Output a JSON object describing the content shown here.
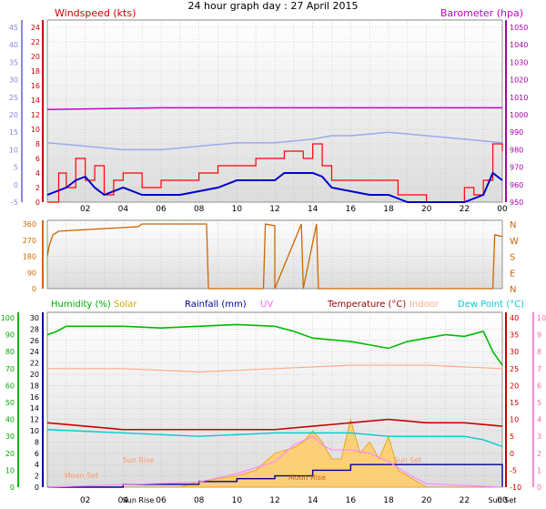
{
  "title": "24 hour graph day : 27 April 2015",
  "chart_data": [
    {
      "type": "line",
      "panel": "wind_baro",
      "series_labels": {
        "left": "Windspeed (kts)",
        "right": "Barometer (hpa)"
      },
      "left_axis": {
        "ylim": [
          -5,
          45
        ],
        "ticks": [
          -5,
          0,
          5,
          10,
          15,
          20,
          25,
          30,
          35,
          40,
          45
        ],
        "color": "#8888dd"
      },
      "inner_left_axis": {
        "ylim": [
          0,
          24
        ],
        "ticks": [
          0,
          2,
          4,
          6,
          8,
          10,
          12,
          14,
          16,
          18,
          20,
          22,
          24
        ],
        "color": "#cc0000"
      },
      "right_axis": {
        "ylim": [
          950,
          1050
        ],
        "ticks": [
          950,
          960,
          970,
          980,
          990,
          1000,
          1010,
          1020,
          1030,
          1040,
          1050
        ],
        "color": "#aa00aa"
      },
      "x_ticks": [
        "02",
        "04",
        "06",
        "08",
        "10",
        "12",
        "14",
        "16",
        "18",
        "20",
        "22",
        "00"
      ],
      "series": [
        {
          "key": "barometer",
          "unit": "hpa",
          "color": "#cc00cc",
          "x": [
            0,
            6,
            12,
            18,
            24
          ],
          "y": [
            1003,
            1004,
            1004,
            1004,
            1004
          ]
        },
        {
          "key": "wind_gust",
          "unit": "kts",
          "color": "#ff0000",
          "x": [
            0,
            0.6,
            1,
            1.5,
            2,
            2.5,
            3,
            3.5,
            4,
            5,
            6,
            7,
            8,
            9,
            10,
            11,
            12,
            12.5,
            13,
            13.5,
            14,
            14.5,
            15,
            16,
            17,
            18,
            18.5,
            19,
            20,
            21,
            22,
            22.5,
            23,
            23.5,
            24
          ],
          "y": [
            0,
            4,
            2,
            6,
            3,
            5,
            1,
            3,
            4,
            2,
            3,
            3,
            4,
            5,
            5,
            6,
            6,
            7,
            7,
            6,
            8,
            5,
            3,
            3,
            3,
            3,
            1,
            1,
            0,
            0,
            2,
            1,
            3,
            8,
            7
          ]
        },
        {
          "key": "wind_avg",
          "unit": "kts",
          "color": "#0000cc",
          "x": [
            0,
            1,
            1.5,
            2,
            2.5,
            3,
            4,
            5,
            6,
            7,
            8,
            9,
            10,
            11,
            12,
            12.5,
            13,
            14,
            14.5,
            15,
            16,
            17,
            18,
            18.5,
            19,
            20,
            21,
            22,
            23,
            23.5,
            24
          ],
          "y": [
            1,
            2,
            3,
            3.5,
            2,
            1,
            2,
            1,
            1,
            1,
            1.5,
            2,
            3,
            3,
            3,
            4,
            4,
            4,
            3.5,
            2,
            1.5,
            1,
            1,
            0.5,
            0,
            0,
            0,
            0,
            1,
            4,
            3
          ]
        },
        {
          "key": "wind_pale",
          "unit": "kts",
          "color": "#99aaee",
          "x": [
            0,
            2,
            4,
            6,
            8,
            10,
            12,
            14,
            15,
            16,
            18,
            20,
            22,
            24
          ],
          "y": [
            12,
            11,
            10,
            10,
            11,
            12,
            12,
            13,
            14,
            14,
            15,
            14,
            13,
            12
          ]
        }
      ]
    },
    {
      "type": "line",
      "panel": "wind_direction",
      "left_axis": {
        "ylim": [
          0,
          360
        ],
        "ticks": [
          0,
          90,
          180,
          270,
          360
        ]
      },
      "right_labels": [
        "N",
        "W",
        "S",
        "E",
        "N"
      ],
      "series": [
        {
          "key": "direction",
          "unit": "deg",
          "color": "#cc6600",
          "x": [
            0,
            0.1,
            0.3,
            0.6,
            4.8,
            5,
            8.4,
            8.5,
            11.4,
            11.5,
            12,
            12,
            13.4,
            13.5,
            14.2,
            14.3,
            23.5,
            23.6,
            24
          ],
          "y": [
            180,
            240,
            300,
            320,
            345,
            360,
            360,
            0,
            0,
            360,
            350,
            0,
            360,
            0,
            360,
            0,
            0,
            300,
            290
          ]
        }
      ]
    },
    {
      "type": "line",
      "panel": "temp_hum",
      "series_labels": {
        "humidity": "Humidity (%)",
        "solar": "Solar",
        "rainfall": "Rainfall (mm)",
        "uv": "UV",
        "temperature": "Temperature (°C)",
        "indoor": "Indoor",
        "dewpoint": "Dew Point (°C)"
      },
      "humidity_axis": {
        "ylim": [
          0,
          100
        ],
        "ticks": [
          0,
          10,
          20,
          30,
          40,
          50,
          60,
          70,
          80,
          90,
          100
        ]
      },
      "rainfall_axis": {
        "ylim": [
          0,
          30
        ],
        "ticks": [
          0,
          2,
          4,
          6,
          8,
          10,
          12,
          14,
          16,
          18,
          20,
          22,
          24,
          26,
          28,
          30
        ]
      },
      "temperature_axis": {
        "ylim": [
          -10,
          40
        ],
        "ticks": [
          -10,
          -5,
          0,
          5,
          10,
          15,
          20,
          25,
          30,
          35,
          40
        ]
      },
      "uv_axis": {
        "ylim": [
          0,
          10
        ],
        "ticks": [
          0,
          1,
          2,
          3,
          4,
          5,
          6,
          7,
          8,
          9,
          10
        ]
      },
      "annotations": [
        "Moon Set",
        "Sun Rise",
        "Sun Rise",
        "Moon Rise",
        "Sun Set",
        "Sun Set"
      ],
      "series": [
        {
          "key": "humidity",
          "unit": "%",
          "color": "#00bb00",
          "x": [
            0,
            0.5,
            1,
            2,
            4,
            6,
            8,
            10,
            12,
            13,
            14,
            15,
            16,
            17,
            18,
            19,
            20,
            21,
            22,
            23,
            23.5,
            24
          ],
          "y": [
            90,
            92,
            95,
            95,
            95,
            94,
            95,
            96,
            95,
            92,
            88,
            87,
            86,
            84,
            82,
            86,
            88,
            90,
            89,
            92,
            80,
            72
          ]
        },
        {
          "key": "indoor",
          "unit": "°C",
          "color": "#ffaa88",
          "x": [
            0,
            4,
            8,
            12,
            16,
            20,
            24
          ],
          "y": [
            25,
            25,
            24,
            25,
            26,
            26,
            25
          ]
        },
        {
          "key": "temperature",
          "unit": "°C",
          "color": "#cc0000",
          "x": [
            0,
            4,
            8,
            12,
            14,
            16,
            18,
            20,
            22,
            24
          ],
          "y": [
            9,
            7,
            7,
            7,
            8,
            9,
            10,
            9,
            9,
            8
          ]
        },
        {
          "key": "dewpoint",
          "unit": "°C",
          "color": "#00cccc",
          "x": [
            0,
            4,
            8,
            12,
            14,
            16,
            18,
            20,
            22,
            23,
            24
          ],
          "y": [
            7,
            6,
            5,
            6,
            6,
            6,
            5,
            5,
            5,
            4,
            2
          ]
        },
        {
          "key": "rainfall",
          "unit": "mm",
          "color": "#000099",
          "x": [
            0,
            4,
            8,
            10,
            12,
            14,
            16,
            18,
            20,
            22,
            23.9,
            24
          ],
          "y": [
            0,
            0.5,
            1,
            1.5,
            2,
            3,
            4,
            4,
            4,
            4,
            4,
            0
          ]
        },
        {
          "key": "solar",
          "unit": "",
          "color": "#ffcc66",
          "fill": true,
          "x": [
            0,
            7,
            8,
            10,
            11,
            12,
            13,
            13.5,
            14,
            14.5,
            15,
            15.5,
            16,
            16.5,
            17,
            17.5,
            18,
            18.5,
            19,
            19.5,
            20,
            24
          ],
          "y": [
            0,
            0,
            1,
            2,
            3,
            6,
            7,
            8,
            10,
            8,
            5,
            5,
            12,
            6,
            8,
            5,
            9,
            3,
            2,
            1,
            0,
            0
          ]
        },
        {
          "key": "uv",
          "unit": "",
          "color": "#ff88ff",
          "x": [
            0,
            8,
            10,
            12,
            13,
            14,
            14.5,
            15,
            16,
            17,
            18,
            19,
            20,
            24
          ],
          "y": [
            0,
            0.3,
            0.8,
            1.5,
            2.5,
            3,
            2.5,
            2.2,
            2.2,
            2,
            1.5,
            0.8,
            0.2,
            0
          ]
        }
      ]
    }
  ]
}
